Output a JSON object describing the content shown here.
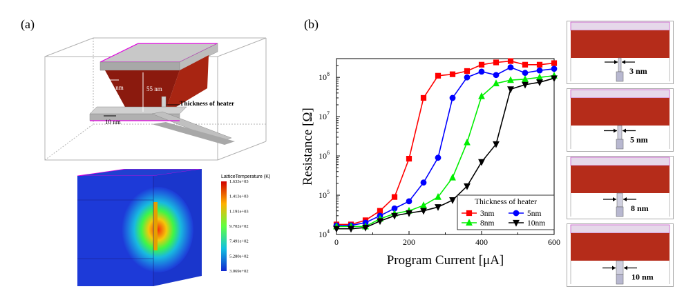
{
  "panel_labels": {
    "a": "(a)",
    "b": "(b)"
  },
  "schematic": {
    "dim_width": "20 nm",
    "dim_height": "55 nm",
    "dim_bottom": "10 nm",
    "heater_callout": "Thickness of heater"
  },
  "thermal": {
    "legend_title": "LatticeTemperature (K)",
    "legend_ticks": [
      "1.633e+03",
      "1.413e+03",
      "1.191e+03",
      "9.702e+02",
      "7.491e+02",
      "5.280e+02",
      "3.069e+02"
    ]
  },
  "chart_data": {
    "type": "line",
    "xlabel": "Program Current [μA]",
    "ylabel": "Resistance [Ω]",
    "xlim": [
      0,
      600
    ],
    "ylim": [
      10000,
      300000000
    ],
    "yscale": "log",
    "xticks": [
      "0",
      "200",
      "400",
      "600"
    ],
    "yticks": [
      {
        "base": "10",
        "exp": "4",
        "value": 10000
      },
      {
        "base": "10",
        "exp": "5",
        "value": 100000
      },
      {
        "base": "10",
        "exp": "6",
        "value": 1000000
      },
      {
        "base": "10",
        "exp": "7",
        "value": 10000000
      },
      {
        "base": "10",
        "exp": "8",
        "value": 100000000
      }
    ],
    "legend_title": "Thickness of heater",
    "legend_position": "bottom-right",
    "series": [
      {
        "name": "3nm",
        "color": "#ff0000",
        "marker": "square",
        "x": [
          0,
          40,
          80,
          120,
          160,
          200,
          240,
          280,
          320,
          360,
          400,
          440,
          480,
          520,
          560,
          600
        ],
        "y": [
          18000,
          18000,
          23000,
          40000,
          90000,
          850000,
          30000000,
          110000000,
          120000000,
          145000000,
          210000000,
          240000000,
          260000000,
          210000000,
          210000000,
          230000000
        ]
      },
      {
        "name": "5nm",
        "color": "#0000ff",
        "marker": "circle",
        "x": [
          0,
          40,
          80,
          120,
          160,
          200,
          240,
          280,
          320,
          360,
          400,
          440,
          480,
          520,
          560,
          600
        ],
        "y": [
          17000,
          17000,
          20000,
          30000,
          46000,
          70000,
          210000,
          900000,
          30000000,
          100000000,
          140000000,
          115000000,
          180000000,
          130000000,
          150000000,
          165000000
        ]
      },
      {
        "name": "8nm",
        "color": "#00ee00",
        "marker": "triangle-up",
        "x": [
          0,
          40,
          80,
          120,
          160,
          200,
          240,
          280,
          320,
          360,
          400,
          440,
          480,
          520,
          560,
          600
        ],
        "y": [
          16000,
          16000,
          16000,
          25000,
          34000,
          40000,
          55000,
          90000,
          280000,
          2200000,
          33000000,
          70000000,
          85000000,
          90000000,
          100000000,
          110000000
        ]
      },
      {
        "name": "10nm",
        "color": "#000000",
        "marker": "triangle-down",
        "x": [
          0,
          40,
          80,
          120,
          160,
          200,
          240,
          280,
          320,
          360,
          400,
          440,
          480,
          520,
          560,
          600
        ],
        "y": [
          14000,
          14000,
          15000,
          22000,
          30000,
          35000,
          40000,
          50000,
          75000,
          170000,
          700000,
          2000000,
          50000000,
          65000000,
          75000000,
          95000000
        ]
      }
    ]
  },
  "cross_sections": [
    {
      "label": "3 nm"
    },
    {
      "label": "5 nm"
    },
    {
      "label": "8 nm"
    },
    {
      "label": "10 nm"
    }
  ]
}
